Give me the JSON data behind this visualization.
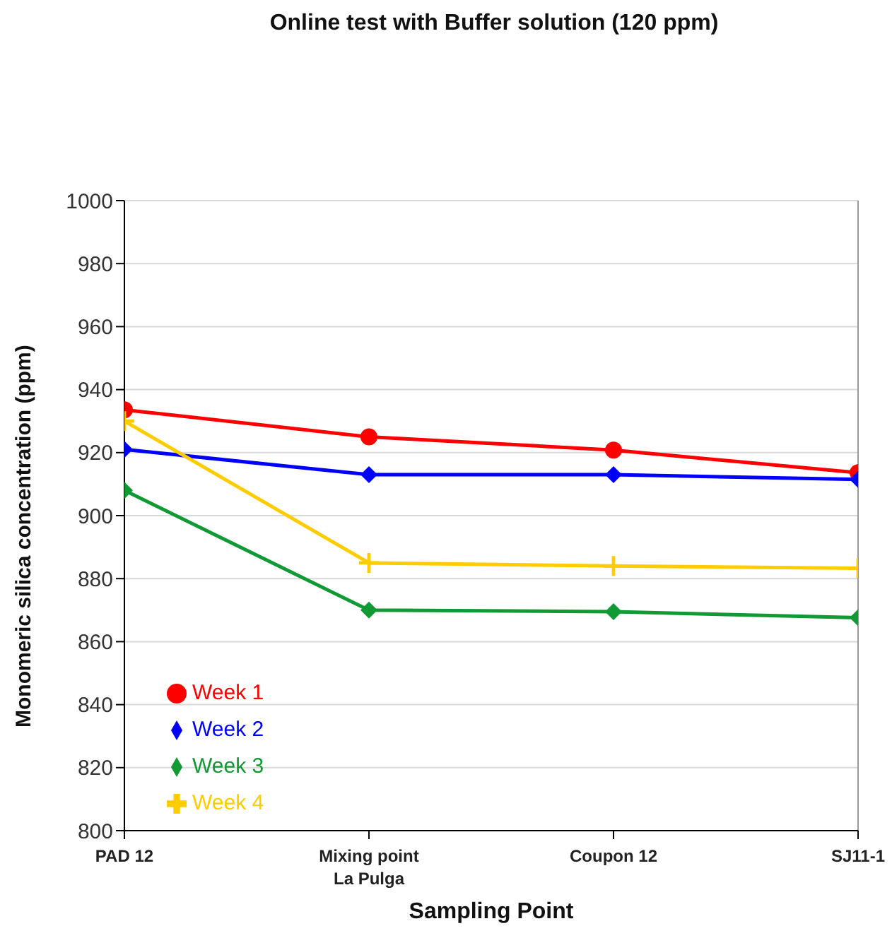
{
  "chart_data": {
    "type": "line",
    "title": "Online test with Buffer solution (120 ppm)",
    "xlabel": "Sampling Point",
    "ylabel": "Monomeric silica concentration (ppm)",
    "categories": [
      "PAD 12",
      "Mixing point\nLa Pulga",
      "Coupon 12",
      "SJ11-1"
    ],
    "series": [
      {
        "name": "Week 1",
        "color": "#ff0000",
        "marker": "circle",
        "values": [
          933.6,
          925,
          920.8,
          913.6
        ]
      },
      {
        "name": "Week 2",
        "color": "#0000ff",
        "marker": "diamond",
        "values": [
          921,
          913,
          913,
          911.5
        ]
      },
      {
        "name": "Week 3",
        "color": "#119933",
        "marker": "diamond",
        "values": [
          908,
          870,
          869.5,
          867.6
        ]
      },
      {
        "name": "Week 4",
        "color": "#ffcc00",
        "marker": "cross",
        "values": [
          930,
          885,
          884,
          883.3
        ]
      }
    ],
    "ylim": [
      800,
      1000
    ],
    "yticks": [
      800,
      820,
      840,
      860,
      880,
      900,
      920,
      940,
      960,
      980,
      1000
    ],
    "grid": "y",
    "legend": "bottom left"
  }
}
